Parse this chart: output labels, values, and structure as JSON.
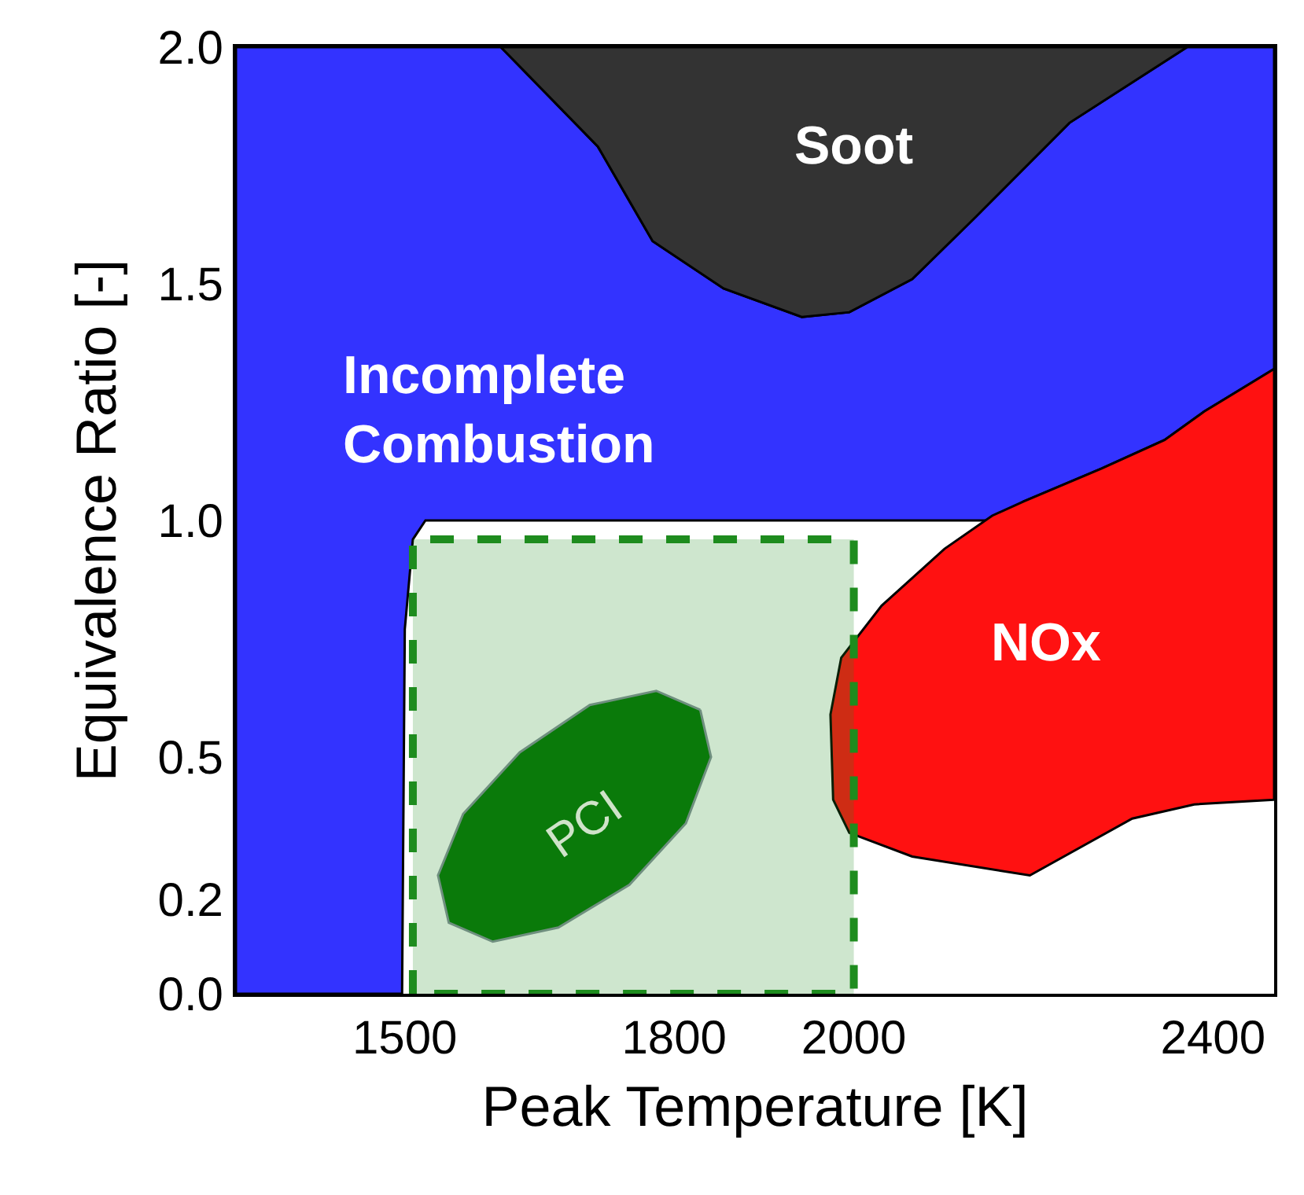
{
  "chart_data": {
    "type": "area",
    "xlabel": "Peak Temperature [K]",
    "ylabel": "Equivalence Ratio [-]",
    "xlim": [
      1312,
      2468
    ],
    "xticks": [
      1500,
      1800,
      2000,
      2400
    ],
    "ylim": [
      0,
      2.0
    ],
    "yticks": [
      {
        "value": 0,
        "label": "0.0"
      },
      0.2,
      0.5,
      {
        "value": 1,
        "label": "1.0"
      },
      1.5,
      {
        "value": 2,
        "label": "2.0"
      }
    ],
    "series": [
      {
        "color": "#3333ff",
        "x": [
          1312,
          1312,
          1607,
          1715,
          1776,
          1855,
          1942,
          1995,
          2065,
          2135,
          2240,
          2371,
          2468,
          2468,
          2390,
          2346,
          2276,
          2189,
          2154,
          1523,
          1509,
          1500,
          1497,
          1312
        ],
        "values": [
          0,
          2.0,
          2.0,
          1.79,
          1.59,
          1.49,
          1.43,
          1.44,
          1.51,
          1.64,
          1.84,
          2.0,
          2.0,
          1.32,
          1.23,
          1.17,
          1.11,
          1.04,
          1.0,
          1.0,
          0.96,
          0.77,
          0,
          0
        ]
      },
      {
        "color": "#333333",
        "x": [
          1607,
          1715,
          1776,
          1855,
          1942,
          1995,
          2065,
          2135,
          2240,
          2371,
          1607
        ],
        "values": [
          2.0,
          1.79,
          1.59,
          1.49,
          1.43,
          1.44,
          1.51,
          1.64,
          1.84,
          2.0,
          2.0
        ]
      },
      {
        "color": "#ff1111",
        "x": [
          2468,
          2390,
          2346,
          2276,
          2189,
          2154,
          2101,
          2031,
          1986,
          1974,
          1977,
          1995,
          2065,
          2196,
          2310,
          2379,
          2468,
          2468
        ],
        "values": [
          1.32,
          1.23,
          1.17,
          1.11,
          1.04,
          1.01,
          0.94,
          0.82,
          0.71,
          0.59,
          0.41,
          0.34,
          0.29,
          0.25,
          0.37,
          0.4,
          0.41,
          1.32
        ]
      },
      {
        "color": "#1e8c1e",
        "line_style": "dashed",
        "x": [
          1509,
          1509,
          2000,
          2000,
          1509
        ],
        "values": [
          0,
          0.96,
          0.96,
          0,
          0
        ]
      },
      {
        "color": "#0a7a0a",
        "x": [
          1829,
          1841,
          1813,
          1750,
          1671,
          1598,
          1549,
          1537,
          1565,
          1628,
          1706,
          1780,
          1829
        ],
        "values": [
          0.6,
          0.5,
          0.36,
          0.23,
          0.14,
          0.11,
          0.15,
          0.25,
          0.38,
          0.51,
          0.61,
          0.64,
          0.6
        ]
      }
    ],
    "annotations": [
      "Soot",
      "Incomplete\nCombustion",
      "NOx",
      "PCI"
    ]
  }
}
